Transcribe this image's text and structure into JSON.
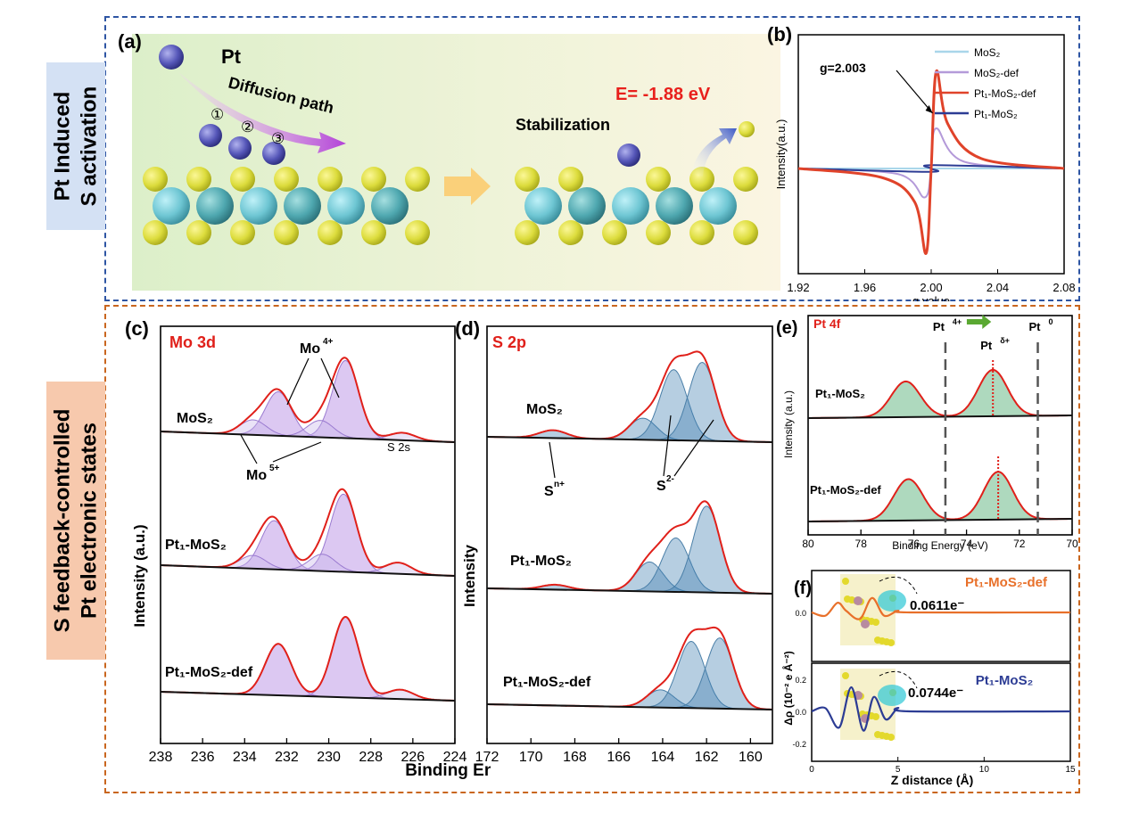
{
  "section_top": {
    "side_label_line1": "Pt Induced",
    "side_label_line2": "S activation",
    "side_bg": "#d4e1f4",
    "frame_color": "#2e55a3"
  },
  "section_bottom": {
    "side_label_line1": "S feedback-controlled",
    "side_label_line2": "Pt electronic states",
    "side_bg": "#f7c9ad",
    "frame_color": "#c9661f"
  },
  "panel_a": {
    "label": "(a)",
    "pt_label": "Pt",
    "path_label": "Diffusion path",
    "step_labels": [
      "①",
      "②",
      "③"
    ],
    "stabilization_label": "Stabilization",
    "energy_label": "E= -1.88 eV",
    "arrow_icon": "arrow-right-icon"
  },
  "chart_data": [
    {
      "id": "b",
      "type": "line",
      "panel_label": "(b)",
      "xlabel": "g value",
      "ylabel": "Intensity(a.u.)",
      "xlim": [
        1.92,
        2.08
      ],
      "xticks": [
        "1.92",
        "1.96",
        "2.00",
        "2.04",
        "2.08"
      ],
      "annotation": "g=2.003",
      "series": [
        {
          "name": "MoS₂",
          "color": "#a9d6ea",
          "values": [
            [
              1.92,
              0
            ],
            [
              1.99,
              0
            ],
            [
              2.0,
              0
            ],
            [
              2.08,
              0
            ]
          ]
        },
        {
          "name": "MoS₂-def",
          "color": "#b49ad9",
          "values": [
            [
              1.92,
              0
            ],
            [
              1.98,
              -0.5
            ],
            [
              1.996,
              -2.6
            ],
            [
              2.0,
              0
            ],
            [
              2.003,
              3.6
            ],
            [
              2.02,
              0.6
            ],
            [
              2.08,
              0
            ]
          ]
        },
        {
          "name": "Pt₁-MoS₂-def",
          "color": "#e0432a",
          "values": [
            [
              1.92,
              0
            ],
            [
              1.97,
              -0.8
            ],
            [
              1.99,
              -3
            ],
            [
              1.997,
              -7.6
            ],
            [
              2.0,
              0
            ],
            [
              2.003,
              8.7
            ],
            [
              2.01,
              4
            ],
            [
              2.03,
              0.9
            ],
            [
              2.08,
              0
            ]
          ]
        },
        {
          "name": "Pt₁-MoS₂",
          "color": "#2c3c94",
          "values": [
            [
              1.92,
              0
            ],
            [
              1.998,
              -0.3
            ],
            [
              2.0,
              0
            ],
            [
              2.002,
              0.3
            ],
            [
              2.08,
              0
            ]
          ]
        }
      ]
    },
    {
      "id": "c",
      "type": "line",
      "panel_label": "(c)",
      "title": "Mo 3d",
      "xlabel": "Binding Energy (eV)",
      "ylabel": "Intensity (a.u.)",
      "xlim": [
        238,
        224
      ],
      "xticks": [
        "238",
        "236",
        "234",
        "232",
        "230",
        "228",
        "226",
        "224"
      ],
      "spectra": [
        {
          "name": "MoS₂",
          "peaks": [
            {
              "center": 232.4,
              "height": 47
            },
            {
              "center": 229.2,
              "height": 83
            },
            {
              "center": 233.6,
              "height": 16
            },
            {
              "center": 230.4,
              "height": 18
            },
            {
              "center": 226.5,
              "height": 8
            }
          ]
        },
        {
          "name": "Pt₁-MoS₂",
          "peaks": [
            {
              "center": 232.6,
              "height": 52
            },
            {
              "center": 229.3,
              "height": 83
            },
            {
              "center": 233.6,
              "height": 14
            },
            {
              "center": 230.3,
              "height": 18
            },
            {
              "center": 226.7,
              "height": 12
            }
          ]
        },
        {
          "name": "Pt₁-MoS₂-def",
          "peaks": [
            {
              "center": 232.4,
              "height": 55
            },
            {
              "center": 229.2,
              "height": 86
            },
            {
              "center": 226.6,
              "height": 10
            }
          ]
        }
      ],
      "annotations": [
        "Mo4+",
        "Mo5+",
        "S 2s"
      ]
    },
    {
      "id": "d",
      "type": "line",
      "panel_label": "(d)",
      "title": "S 2p",
      "xlabel": "Binding Energy (eV)",
      "ylabel": "Intensity",
      "xlim": [
        172,
        159
      ],
      "xticks": [
        "172",
        "170",
        "168",
        "166",
        "164",
        "162",
        "160"
      ],
      "spectra": [
        {
          "name": "MoS₂",
          "peaks": [
            {
              "center": 169,
              "height": 8
            },
            {
              "center": 164.9,
              "height": 22
            },
            {
              "center": 163.5,
              "height": 72
            },
            {
              "center": 162.2,
              "height": 80
            }
          ]
        },
        {
          "name": "Pt₁-MoS₂",
          "peaks": [
            {
              "center": 168.9,
              "height": 5
            },
            {
              "center": 164.6,
              "height": 30
            },
            {
              "center": 163.4,
              "height": 55
            },
            {
              "center": 162,
              "height": 88
            }
          ]
        },
        {
          "name": "Pt₁-MoS₂-def",
          "peaks": [
            {
              "center": 164.1,
              "height": 18
            },
            {
              "center": 162.7,
              "height": 68
            },
            {
              "center": 161.4,
              "height": 72
            }
          ]
        }
      ],
      "annotations": [
        "Sn+",
        "S2-"
      ]
    },
    {
      "id": "e",
      "type": "line",
      "panel_label": "(e)",
      "title": "Pt 4f",
      "xlabel": "Binding Energy (eV)",
      "ylabel": "Intensity (a.u.)",
      "xlim": [
        80,
        70
      ],
      "xticks": [
        "80",
        "78",
        "76",
        "74",
        "72",
        "70"
      ],
      "reference_lines": [
        {
          "label": "Pt 4+",
          "x": 74.8
        },
        {
          "label": "Pt δ+",
          "x": 73.0
        },
        {
          "label": "Pt 0",
          "x": 71.3
        }
      ],
      "spectra": [
        {
          "name": "Pt₁-MoS₂",
          "peaks": [
            {
              "center": 76.3,
              "height": 50
            },
            {
              "center": 73.0,
              "height": 65
            }
          ]
        },
        {
          "name": "Pt₁-MoS₂-def",
          "peaks": [
            {
              "center": 76.2,
              "height": 58
            },
            {
              "center": 72.8,
              "height": 67
            }
          ]
        }
      ]
    },
    {
      "id": "f",
      "type": "line",
      "panel_label": "(f)",
      "xlabel": "Z distance (Å)",
      "ylabel": "Δρ (10⁻² e Å⁻²)",
      "xlim": [
        0,
        15
      ],
      "xticks": [
        "0",
        "5",
        "10",
        "15"
      ],
      "yticks_top": [
        "0.0"
      ],
      "yticks_bottom": [
        "0.2",
        "0.0",
        "-0.2"
      ],
      "series": [
        {
          "name": "Pt₁-MoS₂-def",
          "color": "#e8702a",
          "charge": "0.0611e⁻",
          "values": [
            [
              0,
              0
            ],
            [
              0.8,
              -0.02
            ],
            [
              1.5,
              0.06
            ],
            [
              2,
              0.01
            ],
            [
              2.8,
              -0.04
            ],
            [
              3.5,
              0.09
            ],
            [
              4.2,
              -0.02
            ],
            [
              5,
              0.01
            ],
            [
              5.7,
              0
            ],
            [
              15,
              0
            ]
          ]
        },
        {
          "name": "Pt₁-MoS₂",
          "color": "#2c3c94",
          "charge": "0.0744e⁻",
          "values": [
            [
              0,
              0
            ],
            [
              0.8,
              0.02
            ],
            [
              1.6,
              -0.1
            ],
            [
              2.3,
              0.15
            ],
            [
              3,
              -0.12
            ],
            [
              3.6,
              0.09
            ],
            [
              4.3,
              -0.05
            ],
            [
              5.0,
              0.02
            ],
            [
              5.7,
              0
            ],
            [
              15,
              0
            ]
          ]
        }
      ]
    }
  ]
}
